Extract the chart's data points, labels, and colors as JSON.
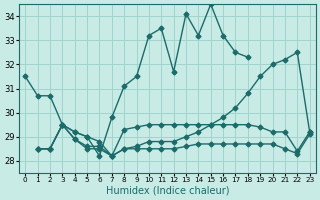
{
  "xlabel": "Humidex (Indice chaleur)",
  "xlim": [
    -0.5,
    23.5
  ],
  "ylim": [
    27.5,
    34.5
  ],
  "yticks": [
    28,
    29,
    30,
    31,
    32,
    33,
    34
  ],
  "xticks": [
    0,
    1,
    2,
    3,
    4,
    5,
    6,
    7,
    8,
    9,
    10,
    11,
    12,
    13,
    14,
    15,
    16,
    17,
    18,
    19,
    20,
    21,
    22,
    23
  ],
  "bg_color": "#c8ebe5",
  "grid_color": "#a0d4cc",
  "line_color": "#1c6b6b",
  "lines": [
    {
      "x": [
        0,
        1,
        2,
        3,
        4,
        5,
        6,
        7,
        8,
        9,
        10,
        11,
        12,
        13,
        14,
        15,
        16,
        17,
        18
      ],
      "y": [
        31.5,
        30.7,
        30.7,
        29.5,
        29.2,
        29.0,
        28.2,
        29.8,
        31.1,
        31.5,
        33.2,
        33.5,
        31.7,
        34.1,
        33.2,
        34.5,
        33.2,
        32.5,
        32.3
      ],
      "marker": "D",
      "markersize": 2.5,
      "linewidth": 1.0
    },
    {
      "x": [
        1,
        2,
        3,
        4,
        5,
        6,
        7,
        8,
        9,
        10,
        11,
        12,
        13,
        14,
        15,
        16,
        17,
        18,
        19,
        20,
        21,
        22,
        23
      ],
      "y": [
        28.5,
        28.5,
        29.5,
        28.9,
        28.6,
        28.6,
        28.2,
        28.5,
        28.6,
        28.8,
        28.8,
        28.8,
        29.0,
        29.2,
        29.5,
        29.8,
        30.2,
        30.8,
        31.5,
        32.0,
        32.2,
        32.5,
        29.2
      ],
      "marker": "D",
      "markersize": 2.5,
      "linewidth": 1.0
    },
    {
      "x": [
        1,
        2,
        3,
        4,
        5,
        6,
        7,
        8,
        9,
        10,
        11,
        12,
        13,
        14,
        15,
        16,
        17,
        18,
        19,
        20,
        21,
        22,
        23
      ],
      "y": [
        28.5,
        28.5,
        29.5,
        29.2,
        29.0,
        28.8,
        28.2,
        29.3,
        29.4,
        29.5,
        29.5,
        29.5,
        29.5,
        29.5,
        29.5,
        29.5,
        29.5,
        29.5,
        29.4,
        29.2,
        29.2,
        28.4,
        29.2
      ],
      "marker": "D",
      "markersize": 2.5,
      "linewidth": 1.0
    },
    {
      "x": [
        1,
        2,
        3,
        4,
        5,
        6,
        7,
        8,
        9,
        10,
        11,
        12,
        13,
        14,
        15,
        16,
        17,
        18,
        19,
        20,
        21,
        22,
        23
      ],
      "y": [
        28.5,
        28.5,
        29.5,
        28.9,
        28.5,
        28.5,
        28.2,
        28.5,
        28.5,
        28.5,
        28.5,
        28.5,
        28.6,
        28.7,
        28.7,
        28.7,
        28.7,
        28.7,
        28.7,
        28.7,
        28.5,
        28.3,
        29.1
      ],
      "marker": "D",
      "markersize": 2.5,
      "linewidth": 1.0
    }
  ]
}
